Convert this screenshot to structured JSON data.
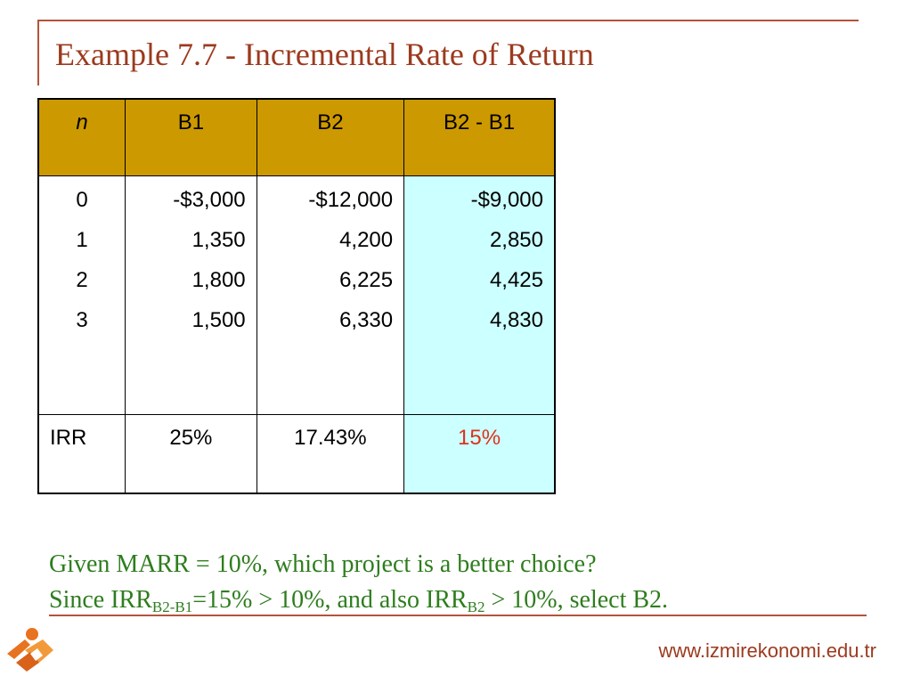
{
  "slide": {
    "title": "Example 7.7 - Incremental Rate of  Return"
  },
  "table": {
    "headers": {
      "n": "n",
      "b1": "B1",
      "b2": "B2",
      "diff": "B2 - B1"
    },
    "rows": [
      {
        "n": "0",
        "b1": "-$3,000",
        "b2": "-$12,000",
        "diff": "-$9,000"
      },
      {
        "n": "1",
        "b1": "1,350",
        "b2": "4,200",
        "diff": "2,850"
      },
      {
        "n": "2",
        "b1": "1,800",
        "b2": "6,225",
        "diff": "4,425"
      },
      {
        "n": "3",
        "b1": "1,500",
        "b2": "6,330",
        "diff": "4,830"
      }
    ],
    "irr": {
      "label": "IRR",
      "b1": "25%",
      "b2": "17.43%",
      "diff": "15%"
    }
  },
  "conclusion": {
    "line1": "Given MARR = 10%, which project is a better choice?",
    "line2_part1": "Since IRR",
    "line2_sub1": "B2-B1",
    "line2_part2": "=15% > 10%, and also IRR",
    "line2_sub2": "B2",
    "line2_part3": " > 10%,  select B2."
  },
  "footer": {
    "website": "www.izmirekonomi.edu.tr"
  },
  "colors": {
    "accent": "#b5533c",
    "title": "#9c3a1e",
    "header_bg": "#cc9900",
    "highlight_bg": "#ccffff",
    "highlight_text": "#e0311b",
    "body_text": "#2e7d1e"
  }
}
